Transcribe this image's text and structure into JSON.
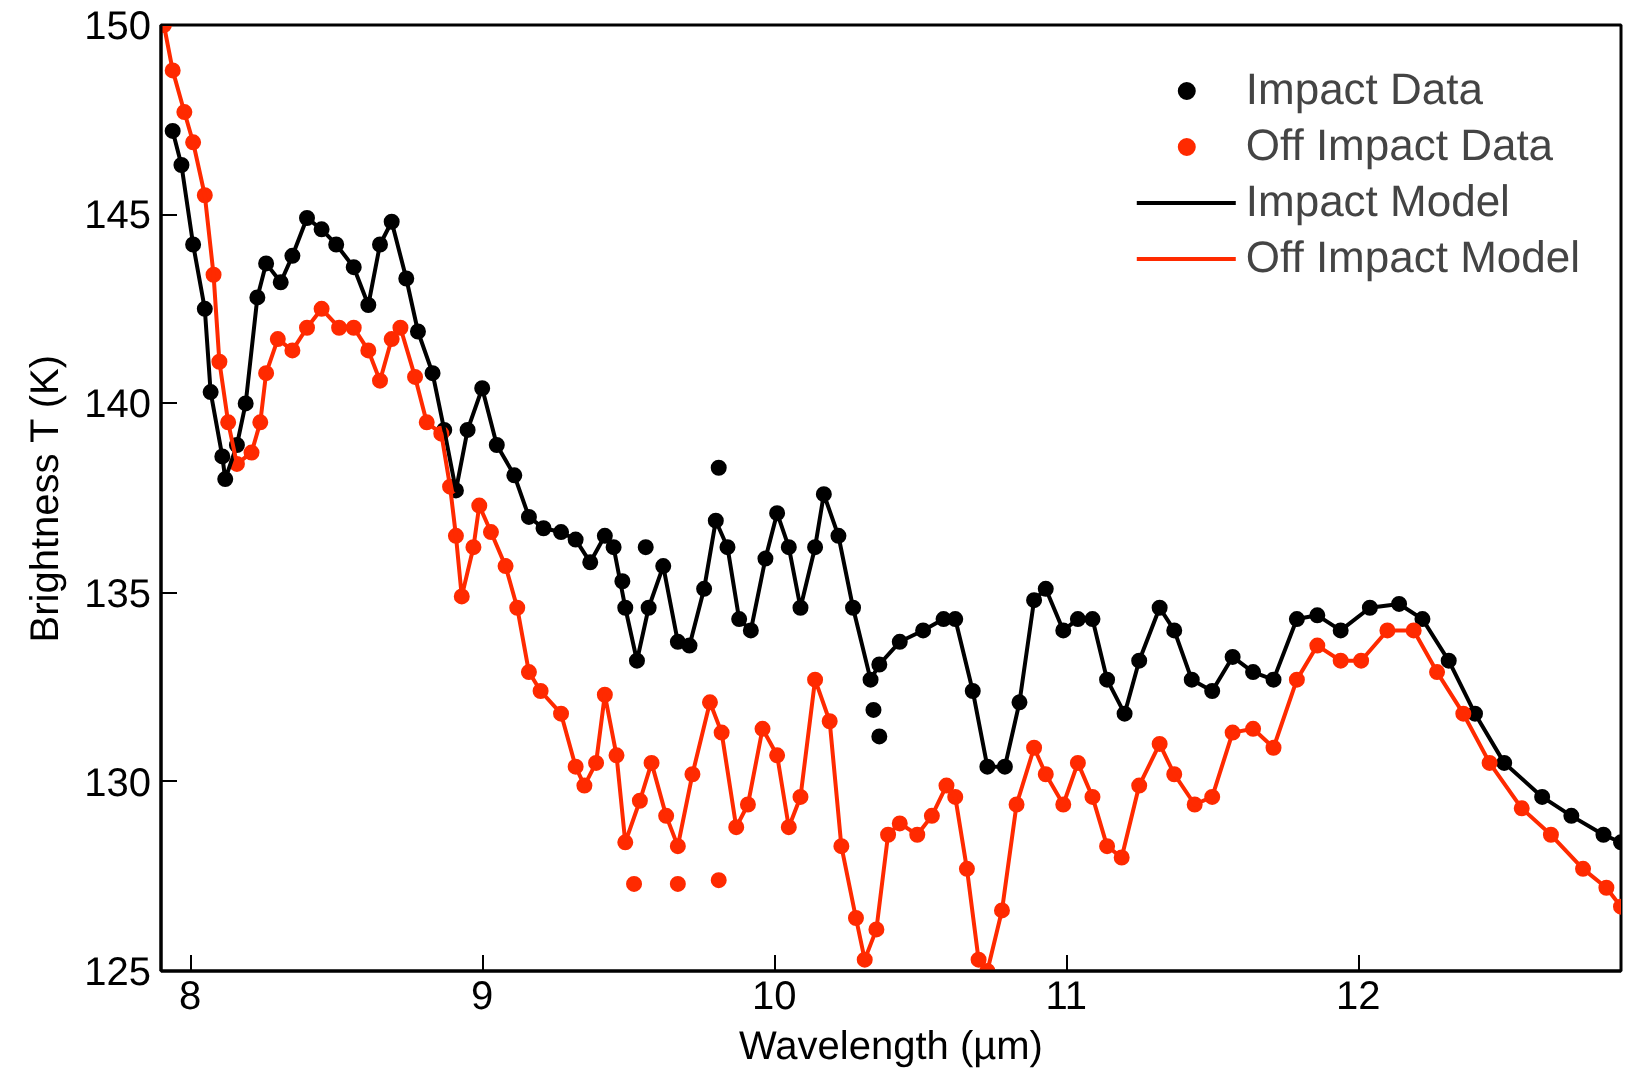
{
  "chart_data": {
    "type": "line",
    "xlabel": "Wavelength (µm)",
    "ylabel": "Brightness T (K)",
    "xlim": [
      7.9,
      12.9
    ],
    "ylim": [
      125,
      150
    ],
    "xticks": [
      8,
      9,
      10,
      11,
      12
    ],
    "yticks": [
      125,
      130,
      135,
      140,
      145,
      150
    ],
    "grid": false,
    "legend": "top right",
    "series": [
      {
        "name": "Impact Data",
        "type": "scatter",
        "marker": "circle",
        "color": "#000000",
        "x": [
          7.94,
          7.97,
          8.01,
          8.05,
          8.07,
          8.11,
          8.12,
          8.16,
          8.19,
          8.23,
          8.26,
          8.31,
          8.35,
          8.4,
          8.45,
          8.5,
          8.56,
          8.61,
          8.65,
          8.69,
          8.74,
          8.78,
          8.83,
          8.87,
          8.91,
          8.95,
          9.0,
          9.05,
          9.11,
          9.16,
          9.21,
          9.27,
          9.32,
          9.37,
          9.42,
          9.45,
          9.49,
          9.53,
          9.57,
          9.62,
          9.67,
          9.71,
          9.76,
          9.8,
          9.84,
          9.88,
          9.92,
          9.97,
          10.01,
          10.05,
          10.09,
          10.14,
          10.17,
          10.22,
          10.27,
          10.33,
          10.36,
          10.43,
          10.51,
          10.58,
          10.62,
          10.68,
          10.73,
          10.79,
          10.84,
          10.89,
          10.93,
          10.99,
          11.04,
          11.09,
          11.14,
          11.2,
          11.25,
          11.32,
          11.37,
          11.43,
          11.5,
          11.57,
          11.64,
          11.71,
          11.79,
          11.86,
          11.94,
          12.04,
          12.14,
          12.22,
          12.31,
          12.4,
          12.5,
          12.63,
          12.73,
          12.84,
          12.9,
          9.81,
          9.56,
          10.34,
          10.36,
          9.48
        ],
        "values": [
          147.2,
          146.3,
          144.2,
          142.5,
          140.3,
          138.6,
          138.0,
          138.9,
          140.0,
          142.8,
          143.7,
          143.2,
          143.9,
          144.9,
          144.6,
          144.2,
          143.6,
          142.6,
          144.2,
          144.8,
          143.3,
          141.9,
          140.8,
          139.3,
          137.7,
          139.3,
          140.4,
          138.9,
          138.1,
          137.0,
          136.7,
          136.6,
          136.4,
          135.8,
          136.5,
          136.2,
          134.6,
          133.2,
          134.6,
          135.7,
          133.7,
          133.6,
          135.1,
          136.9,
          136.2,
          134.3,
          134.0,
          135.9,
          137.1,
          136.2,
          134.6,
          136.2,
          137.6,
          136.5,
          134.6,
          132.7,
          133.1,
          133.7,
          134.0,
          134.3,
          134.3,
          132.4,
          130.4,
          130.4,
          132.1,
          134.8,
          135.1,
          134.0,
          134.3,
          134.3,
          132.7,
          131.8,
          133.2,
          134.6,
          134.0,
          132.7,
          132.4,
          133.3,
          132.9,
          132.7,
          134.3,
          134.4,
          134.0,
          134.6,
          134.7,
          134.3,
          133.2,
          131.8,
          130.5,
          129.6,
          129.1,
          128.6,
          128.4,
          138.3,
          136.2,
          131.9,
          131.2,
          135.3
        ]
      },
      {
        "name": "Off Impact Data",
        "type": "scatter",
        "marker": "circle",
        "color": "#ff2a00",
        "x": [
          7.91,
          7.94,
          7.98,
          8.01,
          8.05,
          8.08,
          8.1,
          8.13,
          8.16,
          8.21,
          8.24,
          8.26,
          8.3,
          8.35,
          8.4,
          8.45,
          8.51,
          8.56,
          8.61,
          8.65,
          8.69,
          8.72,
          8.77,
          8.81,
          8.86,
          8.89,
          8.91,
          8.93,
          8.97,
          8.99,
          9.03,
          9.08,
          9.12,
          9.16,
          9.2,
          9.27,
          9.32,
          9.35,
          9.39,
          9.42,
          9.46,
          9.49,
          9.54,
          9.58,
          9.63,
          9.67,
          9.72,
          9.78,
          9.82,
          9.87,
          9.91,
          9.96,
          10.01,
          10.05,
          10.09,
          10.14,
          10.19,
          10.23,
          10.28,
          10.31,
          10.35,
          10.39,
          10.43,
          10.49,
          10.54,
          10.59,
          10.62,
          10.66,
          10.7,
          10.73,
          10.78,
          10.83,
          10.89,
          10.93,
          10.99,
          11.04,
          11.09,
          11.14,
          11.19,
          11.25,
          11.32,
          11.37,
          11.44,
          11.5,
          11.57,
          11.64,
          11.71,
          11.79,
          11.86,
          11.94,
          12.01,
          12.1,
          12.19,
          12.27,
          12.36,
          12.45,
          12.56,
          12.66,
          12.77,
          12.85,
          12.9,
          9.52,
          9.67,
          9.81
        ],
        "values": [
          150.0,
          148.8,
          147.7,
          146.9,
          145.5,
          143.4,
          141.1,
          139.5,
          138.4,
          138.7,
          139.5,
          140.8,
          141.7,
          141.4,
          142.0,
          142.5,
          142.0,
          142.0,
          141.4,
          140.6,
          141.7,
          142.0,
          140.7,
          139.5,
          139.2,
          137.8,
          136.5,
          134.9,
          136.2,
          137.3,
          136.6,
          135.7,
          134.6,
          132.9,
          132.4,
          131.8,
          130.4,
          129.9,
          130.5,
          132.3,
          130.7,
          128.4,
          129.5,
          130.5,
          129.1,
          128.3,
          130.2,
          132.1,
          131.3,
          128.8,
          129.4,
          131.4,
          130.7,
          128.8,
          129.6,
          132.7,
          131.6,
          128.3,
          126.4,
          125.3,
          126.1,
          128.6,
          128.9,
          128.6,
          129.1,
          129.9,
          129.6,
          127.7,
          125.3,
          125.0,
          126.6,
          129.4,
          130.9,
          130.2,
          129.4,
          130.5,
          129.6,
          128.3,
          128.0,
          129.9,
          131.0,
          130.2,
          129.4,
          129.6,
          131.3,
          131.4,
          130.9,
          132.7,
          133.6,
          133.2,
          133.2,
          134.0,
          134.0,
          132.9,
          131.8,
          130.5,
          129.3,
          128.6,
          127.7,
          127.2,
          126.7,
          127.3,
          127.3,
          127.4
        ]
      },
      {
        "name": "Impact Model",
        "line_style": "solid",
        "color": "#000000",
        "x": [
          7.94,
          7.97,
          8.01,
          8.05,
          8.07,
          8.11,
          8.12,
          8.16,
          8.19,
          8.23,
          8.26,
          8.31,
          8.35,
          8.4,
          8.45,
          8.5,
          8.56,
          8.61,
          8.65,
          8.69,
          8.74,
          8.78,
          8.83,
          8.87,
          8.91,
          8.95,
          9.0,
          9.05,
          9.11,
          9.16,
          9.21,
          9.27,
          9.32,
          9.37,
          9.42,
          9.45,
          9.49,
          9.53,
          9.57,
          9.62,
          9.67,
          9.71,
          9.76,
          9.8,
          9.84,
          9.88,
          9.92,
          9.97,
          10.01,
          10.05,
          10.09,
          10.14,
          10.17,
          10.22,
          10.27,
          10.33,
          10.36,
          10.43,
          10.51,
          10.58,
          10.62,
          10.68,
          10.73,
          10.79,
          10.84,
          10.89,
          10.93,
          10.99,
          11.04,
          11.09,
          11.14,
          11.2,
          11.25,
          11.32,
          11.37,
          11.43,
          11.5,
          11.57,
          11.64,
          11.71,
          11.79,
          11.86,
          11.94,
          12.04,
          12.14,
          12.22,
          12.31,
          12.4,
          12.5,
          12.63,
          12.73,
          12.84,
          12.9
        ],
        "values": [
          147.2,
          146.3,
          144.2,
          142.5,
          140.3,
          138.6,
          138.0,
          138.9,
          140.0,
          142.8,
          143.7,
          143.2,
          143.9,
          144.9,
          144.6,
          144.2,
          143.6,
          142.6,
          144.2,
          144.8,
          143.3,
          141.9,
          140.8,
          139.3,
          137.7,
          139.3,
          140.4,
          138.9,
          138.1,
          137.0,
          136.7,
          136.6,
          136.4,
          135.8,
          136.5,
          136.2,
          134.6,
          133.2,
          134.6,
          135.7,
          133.7,
          133.6,
          135.1,
          136.9,
          136.2,
          134.3,
          134.0,
          135.9,
          137.1,
          136.2,
          134.6,
          136.2,
          137.6,
          136.5,
          134.6,
          132.7,
          133.1,
          133.7,
          134.0,
          134.3,
          134.3,
          132.4,
          130.4,
          130.4,
          132.1,
          134.8,
          135.1,
          134.0,
          134.3,
          134.3,
          132.7,
          131.8,
          133.2,
          134.6,
          134.0,
          132.7,
          132.4,
          133.3,
          132.9,
          132.7,
          134.3,
          134.4,
          134.0,
          134.6,
          134.7,
          134.3,
          133.2,
          131.8,
          130.5,
          129.6,
          129.1,
          128.6,
          128.4
        ]
      },
      {
        "name": "Off Impact Model",
        "line_style": "solid",
        "color": "#ff2a00",
        "x": [
          7.91,
          7.94,
          7.98,
          8.01,
          8.05,
          8.08,
          8.1,
          8.13,
          8.16,
          8.21,
          8.24,
          8.26,
          8.3,
          8.35,
          8.4,
          8.45,
          8.51,
          8.56,
          8.61,
          8.65,
          8.69,
          8.72,
          8.77,
          8.81,
          8.86,
          8.89,
          8.91,
          8.93,
          8.97,
          8.99,
          9.03,
          9.08,
          9.12,
          9.16,
          9.2,
          9.27,
          9.32,
          9.35,
          9.39,
          9.42,
          9.46,
          9.49,
          9.54,
          9.58,
          9.63,
          9.67,
          9.72,
          9.78,
          9.82,
          9.87,
          9.91,
          9.96,
          10.01,
          10.05,
          10.09,
          10.14,
          10.19,
          10.23,
          10.28,
          10.31,
          10.35,
          10.39,
          10.43,
          10.49,
          10.54,
          10.59,
          10.62,
          10.66,
          10.7,
          10.73,
          10.78,
          10.83,
          10.89,
          10.93,
          10.99,
          11.04,
          11.09,
          11.14,
          11.19,
          11.25,
          11.32,
          11.37,
          11.44,
          11.5,
          11.57,
          11.64,
          11.71,
          11.79,
          11.86,
          11.94,
          12.01,
          12.1,
          12.19,
          12.27,
          12.36,
          12.45,
          12.56,
          12.66,
          12.77,
          12.85,
          12.9
        ],
        "values": [
          150.0,
          148.8,
          147.7,
          146.9,
          145.5,
          143.4,
          141.1,
          139.5,
          138.4,
          138.7,
          139.5,
          140.8,
          141.7,
          141.4,
          142.0,
          142.5,
          142.0,
          142.0,
          141.4,
          140.6,
          141.7,
          142.0,
          140.7,
          139.5,
          139.2,
          137.8,
          136.5,
          134.9,
          136.2,
          137.3,
          136.6,
          135.7,
          134.6,
          132.9,
          132.4,
          131.8,
          130.4,
          129.9,
          130.5,
          132.3,
          130.7,
          128.4,
          129.5,
          130.5,
          129.1,
          128.3,
          130.2,
          132.1,
          131.3,
          128.8,
          129.4,
          131.4,
          130.7,
          128.8,
          129.6,
          132.7,
          131.6,
          128.3,
          126.4,
          125.3,
          126.1,
          128.6,
          128.9,
          128.6,
          129.1,
          129.9,
          129.6,
          127.7,
          125.3,
          125.0,
          126.6,
          129.4,
          130.9,
          130.2,
          129.4,
          130.5,
          129.6,
          128.3,
          128.0,
          129.9,
          131.0,
          130.2,
          129.4,
          129.6,
          131.3,
          131.4,
          130.9,
          132.7,
          133.6,
          133.2,
          133.2,
          134.0,
          134.0,
          132.9,
          131.8,
          130.5,
          129.3,
          128.6,
          127.7,
          127.2,
          126.7
        ]
      }
    ]
  }
}
